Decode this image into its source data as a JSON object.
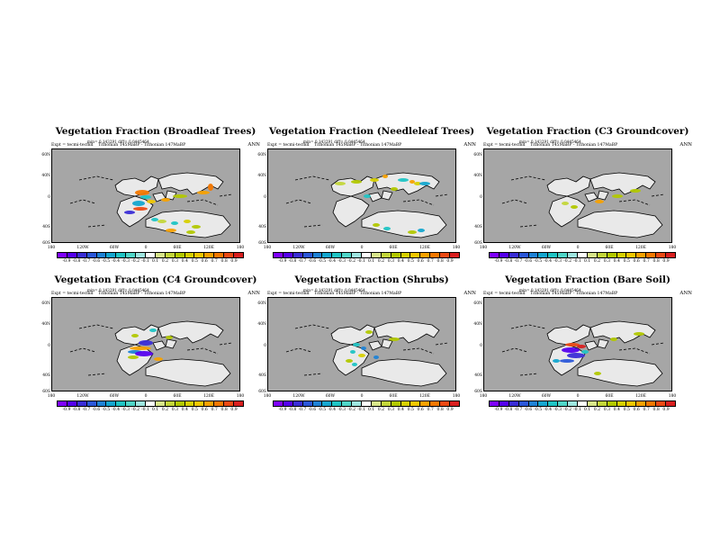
{
  "panels": [
    {
      "title": "Vegetation Fraction (Broadleaf Trees)",
      "stats": "min= 0.143291 diff= 0.0445464",
      "expt": "Expt = tecmi-tecfkd",
      "mid": "Tithonian 145MaBP - Tithonian 147MaBP",
      "season": "ANN"
    },
    {
      "title": "Vegetation Fraction (Needleleaf Trees)",
      "stats": "min= 0.143291 diff= 0.0445464",
      "expt": "Expt = tecmi-tecfkd",
      "mid": "Tithonian 145MaBP - Tithonian 147MaBP",
      "season": "ANN"
    },
    {
      "title": "Vegetation Fraction (C3 Groundcover)",
      "stats": "min= 0.143291 diff= 0.0445464",
      "expt": "Expt = tecmi-tecfkd",
      "mid": "Tithonian 145MaBP - Tithonian 147MaBP",
      "season": "ANN"
    },
    {
      "title": "Vegetation Fraction (C4 Groundcover)",
      "stats": "min= 0.143291 diff= 0.0445464",
      "expt": "Expt = tecmi-tecfkd",
      "mid": "Tithonian 145MaBP - Tithonian 147MaBP",
      "season": "ANN"
    },
    {
      "title": "Vegetation Fraction (Shrubs)",
      "stats": "min= 0.143291 diff= 0.0445464",
      "expt": "Expt = tecmi-tecfkd",
      "mid": "Tithonian 145MaBP - Tithonian 147MaBP",
      "season": "ANN"
    },
    {
      "title": "Vegetation Fraction (Bare Soil)",
      "stats": "min= 0.143291 diff= 0.0445464",
      "expt": "Expt = tecmi-tecfkd",
      "mid": "Tithonian 145MaBP - Tithonian 147MaBP",
      "season": "ANN"
    }
  ],
  "y_axis_labels": [
    "60N",
    "40N",
    "0",
    "40S",
    "60S"
  ],
  "x_axis_labels": [
    "180",
    "120W",
    "60W",
    "0",
    "60E",
    "120E",
    "180"
  ],
  "colorbar": {
    "labels": [
      "-0.9",
      "-0.8",
      "-0.7",
      "-0.6",
      "-0.5",
      "-0.4",
      "-0.3",
      "-0.2",
      "-0.1",
      "0.1",
      "0.2",
      "0.3",
      "0.4",
      "0.5",
      "0.6",
      "0.7",
      "0.8",
      "0.9"
    ],
    "colors": [
      "#7f00ff",
      "#5500ee",
      "#3a2dd6",
      "#2b57d9",
      "#1e82d6",
      "#14a6cf",
      "#1fc4c4",
      "#4fd6c8",
      "#9ee6e0",
      "#ffffff",
      "#d8e68a",
      "#c3d63a",
      "#b2c800",
      "#d7d000",
      "#f1c700",
      "#f7a100",
      "#f47800",
      "#ec4a14",
      "#d91f1f"
    ]
  },
  "colors": {
    "ocean": "#a6a6a6",
    "land": "#e9e9e9",
    "coast": "#000000"
  }
}
